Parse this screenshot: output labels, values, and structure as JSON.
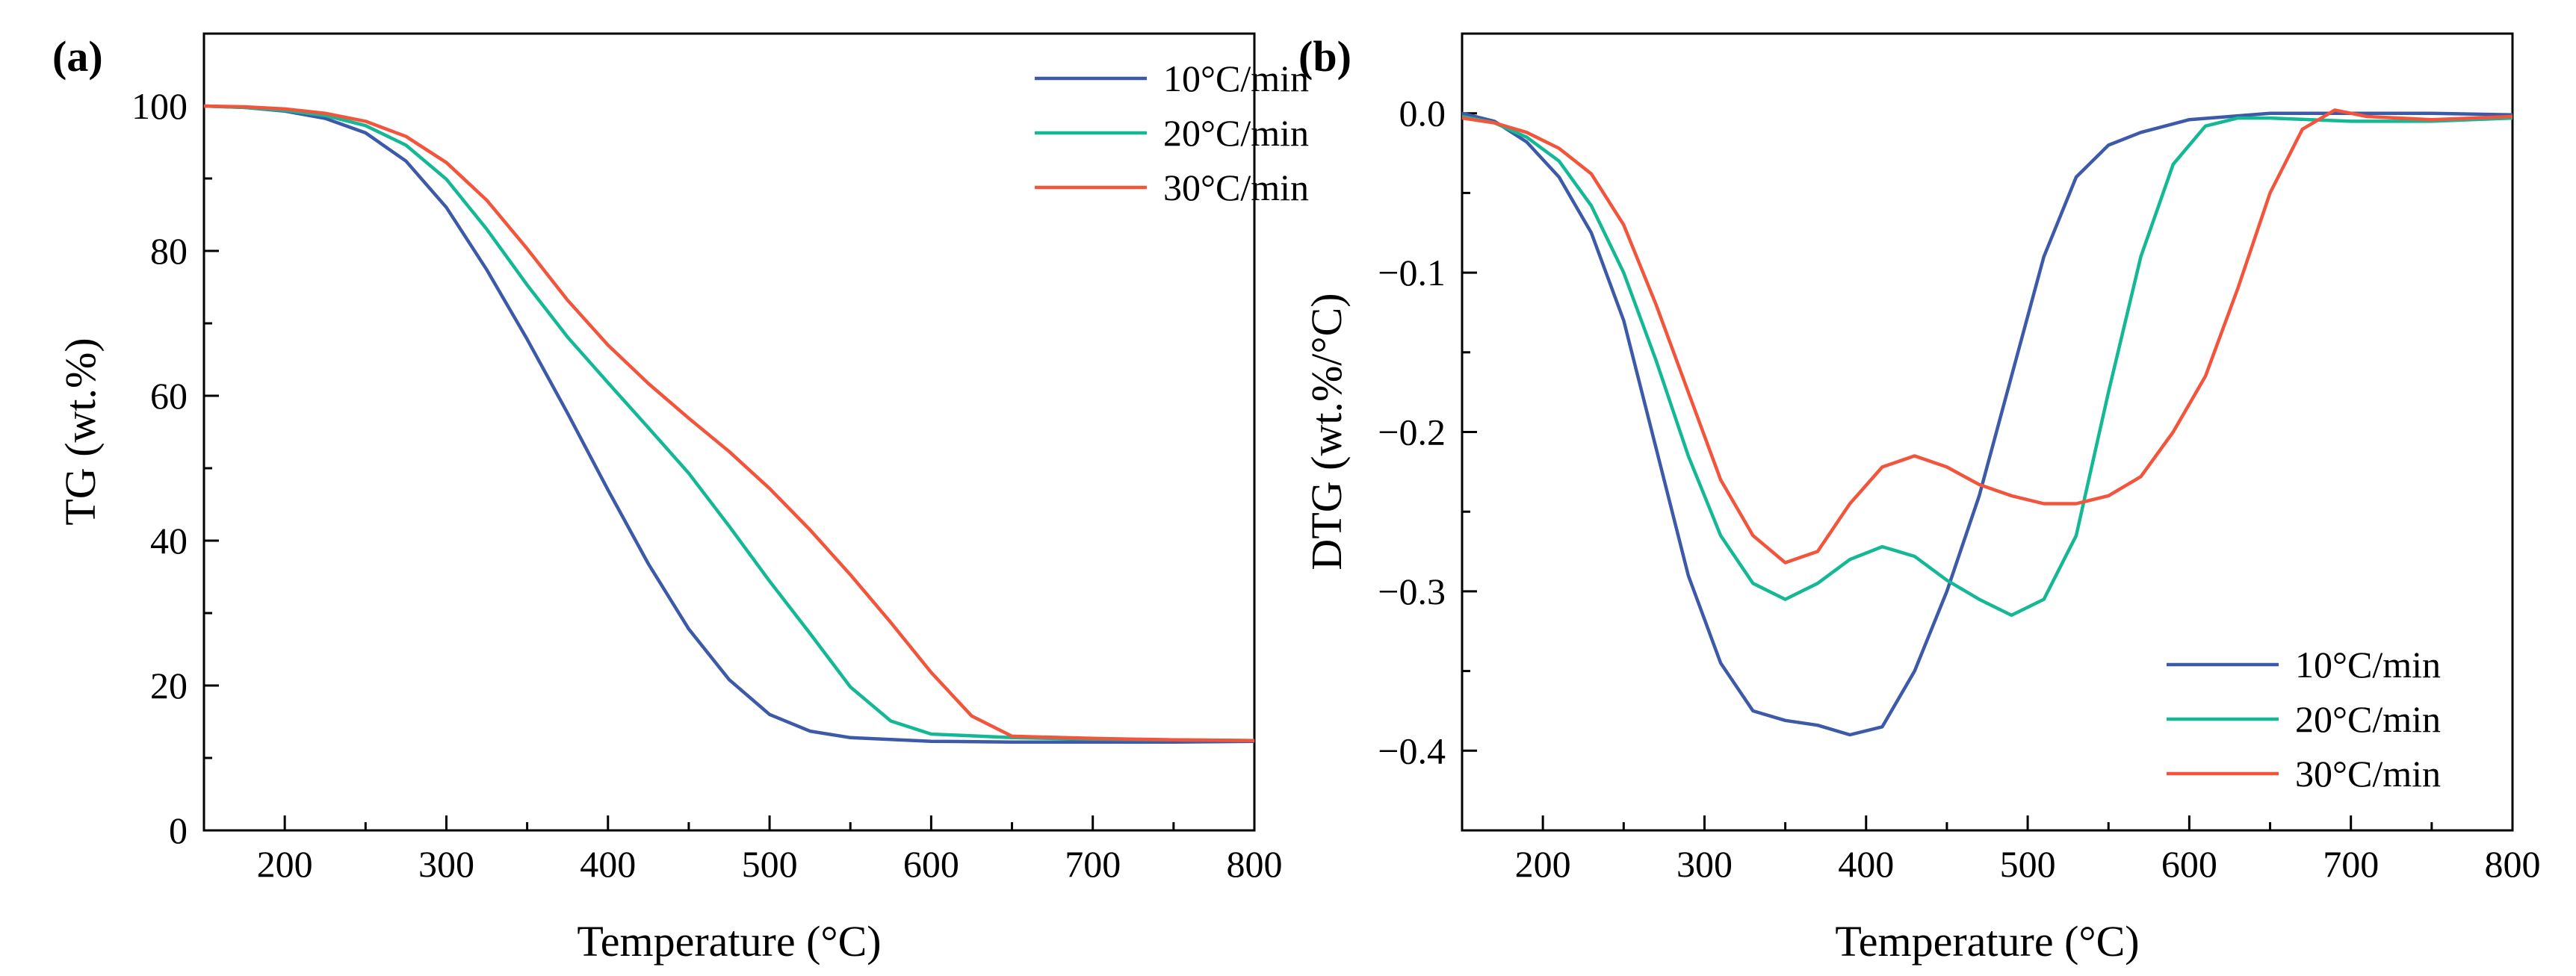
{
  "figure": {
    "panel_a_label_open": "(",
    "panel_a_label_letter": "a",
    "panel_a_label_close": ")",
    "panel_b_label_open": "(",
    "panel_b_label_letter": "b",
    "panel_b_label_close": ")"
  },
  "chart_data": [
    {
      "type": "line",
      "panel": "a",
      "title": "",
      "xlabel": "Temperature (°C)",
      "ylabel": "TG (wt.%)",
      "xlim": [
        150,
        800
      ],
      "ylim": [
        0,
        110
      ],
      "xticks": [
        200,
        300,
        400,
        500,
        600,
        700,
        800
      ],
      "yticks": [
        0,
        20,
        40,
        60,
        80,
        100
      ],
      "xtick_labels": [
        "200",
        "300",
        "400",
        "500",
        "600",
        "700",
        "800"
      ],
      "ytick_labels": [
        "0",
        "20",
        "40",
        "60",
        "80",
        "100"
      ],
      "legend": "top-right",
      "grid": false,
      "series": [
        {
          "name": "10°C/min",
          "color": "#3d5aa8",
          "x": [
            150,
            175,
            200,
            225,
            250,
            275,
            300,
            325,
            350,
            375,
            400,
            425,
            450,
            475,
            500,
            525,
            550,
            600,
            650,
            700,
            750,
            800
          ],
          "y": [
            100,
            99.8,
            99.3,
            98.3,
            96.3,
            92.4,
            86.0,
            77.4,
            67.8,
            57.6,
            47.0,
            36.8,
            27.8,
            20.8,
            16.0,
            13.7,
            12.8,
            12.3,
            12.2,
            12.2,
            12.2,
            12.3
          ]
        },
        {
          "name": "20°C/min",
          "color": "#14b894",
          "x": [
            150,
            175,
            200,
            225,
            250,
            275,
            300,
            325,
            350,
            375,
            400,
            425,
            450,
            475,
            500,
            525,
            550,
            575,
            600,
            650,
            700,
            750,
            800
          ],
          "y": [
            100,
            99.8,
            99.4,
            98.7,
            97.3,
            94.6,
            89.9,
            83.0,
            75.3,
            68.1,
            61.8,
            55.6,
            49.3,
            42.0,
            34.4,
            27.2,
            19.8,
            15.1,
            13.3,
            12.8,
            12.6,
            12.5,
            12.4
          ]
        },
        {
          "name": "30°C/min",
          "color": "#f2543c",
          "x": [
            150,
            175,
            200,
            225,
            250,
            275,
            300,
            325,
            350,
            375,
            400,
            425,
            450,
            475,
            500,
            525,
            550,
            575,
            600,
            625,
            650,
            700,
            750,
            800
          ],
          "y": [
            100,
            99.9,
            99.6,
            99.0,
            97.9,
            95.8,
            92.2,
            87.0,
            80.3,
            73.2,
            67.0,
            61.7,
            56.9,
            52.3,
            47.2,
            41.5,
            35.3,
            28.7,
            21.8,
            15.8,
            13.0,
            12.7,
            12.5,
            12.4
          ]
        }
      ]
    },
    {
      "type": "line",
      "panel": "b",
      "title": "",
      "xlabel": "Temperature (°C)",
      "ylabel": "DTG (wt.%/°C)",
      "xlim": [
        150,
        800
      ],
      "ylim": [
        -0.45,
        0.05
      ],
      "xticks": [
        200,
        300,
        400,
        500,
        600,
        700,
        800
      ],
      "yticks": [
        -0.4,
        -0.3,
        -0.2,
        -0.1,
        0.0
      ],
      "xtick_labels": [
        "200",
        "300",
        "400",
        "500",
        "600",
        "700",
        "800"
      ],
      "ytick_labels": [
        "−0.4",
        "−0.3",
        "−0.2",
        "−0.1",
        "0.0"
      ],
      "legend": "bottom-right",
      "grid": false,
      "series": [
        {
          "name": "10°C/min",
          "color": "#3d5aa8",
          "x": [
            150,
            170,
            190,
            210,
            230,
            250,
            270,
            290,
            310,
            330,
            350,
            370,
            390,
            410,
            430,
            450,
            470,
            490,
            510,
            530,
            550,
            570,
            600,
            650,
            700,
            750,
            800
          ],
          "y": [
            0.0,
            -0.005,
            -0.018,
            -0.04,
            -0.075,
            -0.13,
            -0.21,
            -0.29,
            -0.345,
            -0.375,
            -0.381,
            -0.384,
            -0.39,
            -0.385,
            -0.35,
            -0.3,
            -0.24,
            -0.165,
            -0.09,
            -0.04,
            -0.02,
            -0.012,
            -0.004,
            0.0,
            0.0,
            0.0,
            -0.001
          ]
        },
        {
          "name": "20°C/min",
          "color": "#14b894",
          "x": [
            150,
            170,
            190,
            210,
            230,
            250,
            270,
            290,
            310,
            330,
            350,
            370,
            390,
            410,
            430,
            450,
            470,
            490,
            510,
            530,
            550,
            570,
            590,
            610,
            630,
            650,
            700,
            750,
            800
          ],
          "y": [
            -0.002,
            -0.006,
            -0.015,
            -0.03,
            -0.058,
            -0.1,
            -0.155,
            -0.215,
            -0.265,
            -0.295,
            -0.305,
            -0.295,
            -0.28,
            -0.272,
            -0.278,
            -0.293,
            -0.305,
            -0.315,
            -0.305,
            -0.265,
            -0.175,
            -0.09,
            -0.032,
            -0.008,
            -0.003,
            -0.003,
            -0.005,
            -0.005,
            -0.003
          ]
        },
        {
          "name": "30°C/min",
          "color": "#f2543c",
          "x": [
            150,
            170,
            190,
            210,
            230,
            250,
            270,
            290,
            310,
            330,
            350,
            370,
            390,
            410,
            430,
            450,
            470,
            490,
            510,
            530,
            550,
            570,
            590,
            610,
            630,
            650,
            670,
            690,
            710,
            750,
            800
          ],
          "y": [
            -0.003,
            -0.006,
            -0.012,
            -0.022,
            -0.038,
            -0.07,
            -0.12,
            -0.175,
            -0.23,
            -0.265,
            -0.282,
            -0.275,
            -0.245,
            -0.222,
            -0.215,
            -0.222,
            -0.233,
            -0.24,
            -0.245,
            -0.245,
            -0.24,
            -0.228,
            -0.2,
            -0.165,
            -0.11,
            -0.05,
            -0.01,
            0.002,
            -0.002,
            -0.004,
            -0.002
          ]
        }
      ]
    }
  ]
}
